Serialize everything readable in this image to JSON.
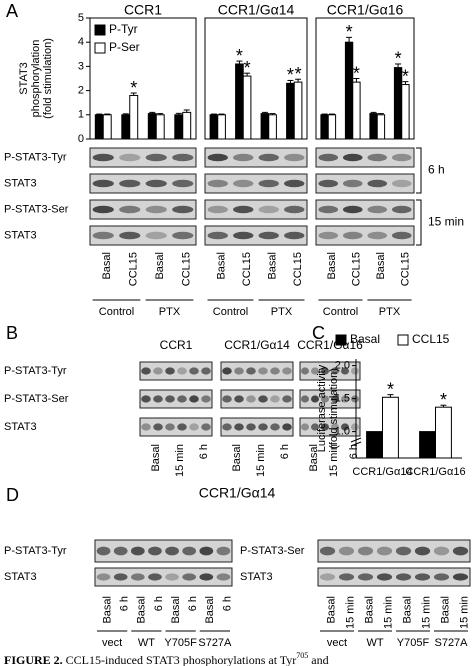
{
  "chart_data": [
    {
      "type": "bar",
      "title": "CCR1",
      "categories": [
        "Basal",
        "CCL15",
        "Basal",
        "CCL15"
      ],
      "groups": [
        "Control",
        "PTX"
      ],
      "ylabel": [
        "STAT3",
        "phosphorylation",
        "(fold stimulation)"
      ],
      "legend": "top-left",
      "ylim": [
        0,
        5
      ],
      "yticks": [
        0,
        1,
        2,
        3,
        4,
        5
      ],
      "series": [
        {
          "name": "P-Tyr",
          "color": "#000000",
          "values": [
            1,
            1,
            1.05,
            1.0
          ],
          "errors": [
            0.03,
            0.04,
            0.05,
            0.06
          ]
        },
        {
          "name": "P-Ser",
          "color": "#ffffff",
          "values": [
            1,
            1.8,
            1.0,
            1.1
          ],
          "errors": [
            0.03,
            0.1,
            0.05,
            0.1
          ]
        }
      ],
      "annotations": [
        {
          "text": "*",
          "series": 1,
          "index": 1
        }
      ]
    },
    {
      "type": "bar",
      "title": "CCR1/Gα14",
      "categories": [
        "Basal",
        "CCL15",
        "Basal",
        "CCL15"
      ],
      "groups": [
        "Control",
        "PTX"
      ],
      "ylim": [
        0,
        5
      ],
      "series": [
        {
          "name": "P-Tyr",
          "color": "#000000",
          "values": [
            1,
            3.1,
            1.05,
            2.3
          ],
          "errors": [
            0.03,
            0.12,
            0.05,
            0.12
          ]
        },
        {
          "name": "P-Ser",
          "color": "#ffffff",
          "values": [
            1,
            2.6,
            1.0,
            2.35
          ],
          "errors": [
            0.03,
            0.12,
            0.05,
            0.12
          ]
        }
      ],
      "annotations": [
        {
          "text": "*",
          "series": 0,
          "index": 1
        },
        {
          "text": "*",
          "series": 1,
          "index": 1
        },
        {
          "text": "*",
          "series": 0,
          "index": 3
        },
        {
          "text": "*",
          "series": 1,
          "index": 3
        }
      ]
    },
    {
      "type": "bar",
      "title": "CCR1/Gα16",
      "categories": [
        "Basal",
        "CCL15",
        "Basal",
        "CCL15"
      ],
      "groups": [
        "Control",
        "PTX"
      ],
      "ylim": [
        0,
        5
      ],
      "series": [
        {
          "name": "P-Tyr",
          "color": "#000000",
          "values": [
            1,
            4.0,
            1.05,
            2.95
          ],
          "errors": [
            0.03,
            0.2,
            0.05,
            0.15
          ]
        },
        {
          "name": "P-Ser",
          "color": "#ffffff",
          "values": [
            1,
            2.35,
            1.0,
            2.25
          ],
          "errors": [
            0.03,
            0.15,
            0.05,
            0.12
          ]
        }
      ],
      "annotations": [
        {
          "text": "*",
          "series": 0,
          "index": 1
        },
        {
          "text": "*",
          "series": 1,
          "index": 1
        },
        {
          "text": "*",
          "series": 0,
          "index": 3
        },
        {
          "text": "*",
          "series": 1,
          "index": 3
        }
      ]
    },
    {
      "type": "bar",
      "categories": [
        "CCR1/Gα14",
        "CCR1/Gα16"
      ],
      "ylabel": [
        "Luciferase activity",
        "(fold stimulation)"
      ],
      "legend": "top",
      "ylim": [
        0.6,
        2.1
      ],
      "yticks": [
        {
          "value": 1,
          "label": "1.0"
        },
        {
          "value": 1.5,
          "label": "1.5"
        },
        {
          "value": 2,
          "label": "2.0"
        }
      ],
      "series": [
        {
          "name": "Basal",
          "color": "#000000",
          "values": [
            1,
            1
          ]
        },
        {
          "name": "CCL15",
          "color": "#ffffff",
          "values": [
            1.52,
            1.37
          ],
          "errors": [
            0.04,
            0.03
          ]
        }
      ],
      "annotations": [
        {
          "text": "*",
          "series": 1,
          "index": 0
        },
        {
          "text": "*",
          "series": 1,
          "index": 1
        }
      ]
    }
  ],
  "panel_a": {
    "label": "A",
    "rows": [
      "P-STAT3-Tyr",
      "STAT3",
      "P-STAT3-Ser",
      "STAT3"
    ],
    "brackets": [
      "6 h",
      "15 min"
    ]
  },
  "panel_b": {
    "label": "B",
    "headers": [
      "CCR1",
      "CCR1/Gα14",
      "CCR1/Gα16"
    ],
    "rows": [
      "P-STAT3-Tyr",
      "P-STAT3-Ser",
      "STAT3"
    ],
    "lanes": [
      "Basal",
      "15 min",
      "6 h"
    ]
  },
  "panel_c": {
    "label": "C"
  },
  "panel_d": {
    "label": "D",
    "title": "CCR1/Gα14",
    "left": {
      "rows": [
        "P-STAT3-Tyr",
        "STAT3"
      ],
      "lanes": [
        "Basal",
        "6 h"
      ]
    },
    "right": {
      "rows": [
        "P-STAT3-Ser",
        "STAT3"
      ],
      "lanes": [
        "Basal",
        "15 min"
      ]
    },
    "groups": [
      "vect",
      "WT",
      "Y705F",
      "S727A"
    ]
  },
  "caption": [
    "FIGURE 2.",
    "  CCL15-induced STAT3 phosphorylations at Tyr",
    "705",
    " and"
  ]
}
